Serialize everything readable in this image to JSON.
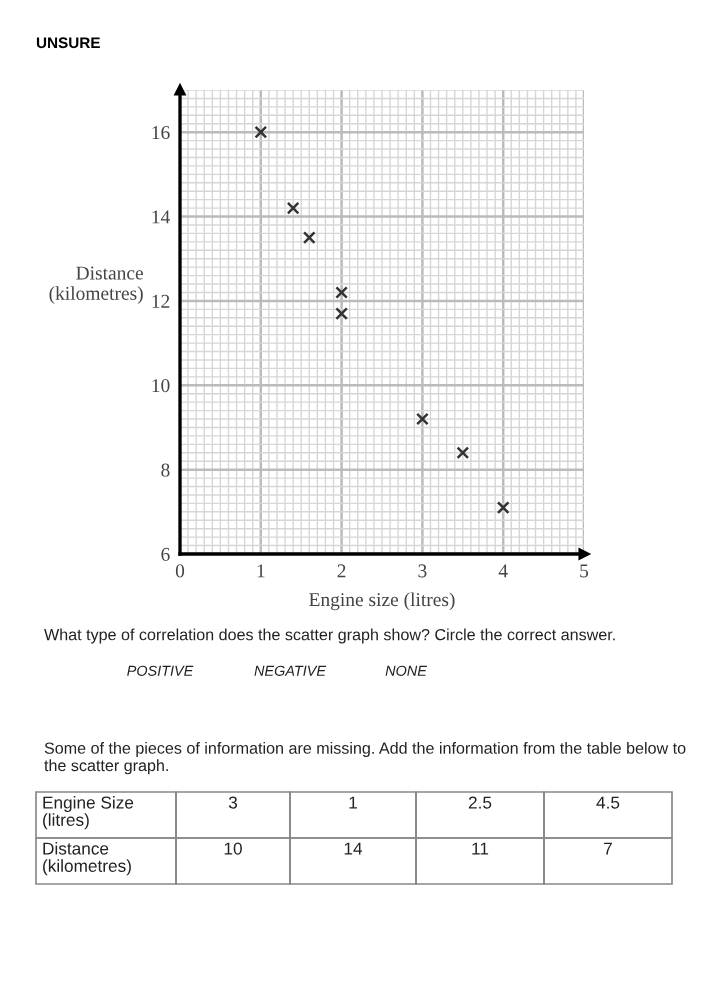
{
  "chart_data": {
    "type": "scatter",
    "title": "UNSURE",
    "xlabel": "Engine size (litres)",
    "ylabel": "Distance\n(kilometres)",
    "x": [
      1,
      1.4,
      1.6,
      2,
      2,
      3,
      3.5,
      4
    ],
    "values": [
      16,
      14.2,
      13.5,
      12.2,
      11.7,
      9.2,
      8.4,
      7.1
    ],
    "color": "#333333",
    "marker": "cross",
    "xlim": [
      0,
      5
    ],
    "xticks": [
      0,
      1,
      2,
      3,
      4,
      5
    ],
    "ylim": [
      6,
      17
    ],
    "yticks": [
      6,
      8,
      10,
      12,
      14,
      16
    ],
    "grid": true,
    "annotations": [
      "What type of correlation does the scatter graph show? Circle the correct answer.",
      "POSITIVE",
      "NEGATIVE",
      "NONE",
      "Some of the pieces of information are missing. Add the information from the table below to the scatter graph.",
      "Engine Size\n(litres)",
      "3",
      "1",
      "2.5",
      "4.5",
      "Distance\n(kilometres)",
      "10",
      "14",
      "11",
      "7"
    ]
  }
}
